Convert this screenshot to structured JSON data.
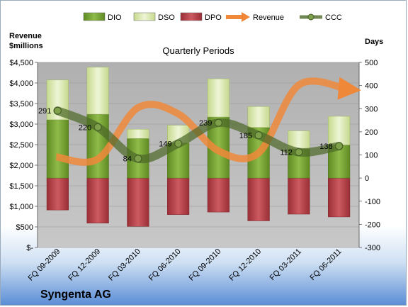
{
  "company": "Syngenta AG",
  "left_axis_header": [
    "Revenue",
    "$millions"
  ],
  "right_axis_header": "Days",
  "colors": {
    "dio": "#7ba33a",
    "dso": "#dbe8b0",
    "dpo": "#b8434a",
    "revenue": "#f0883a",
    "ccc": "#4e6a2a",
    "plot_bg": "#b8b8b8"
  },
  "legend": [
    {
      "key": "dio",
      "label": "DIO",
      "icon": "bar-swatch"
    },
    {
      "key": "dso",
      "label": "DSO",
      "icon": "bar-swatch"
    },
    {
      "key": "dpo",
      "label": "DPO",
      "icon": "bar-swatch"
    },
    {
      "key": "revenue",
      "label": "Revenue",
      "icon": "arrow-line"
    },
    {
      "key": "ccc",
      "label": "CCC",
      "icon": "dot-line"
    }
  ],
  "chart_data": {
    "type": "bar",
    "title": "Quarterly Periods",
    "categories": [
      "FQ 09-2009",
      "FQ 12-2009",
      "FQ 03-2010",
      "FQ 06-2010",
      "FQ 09-2010",
      "FQ 12-2010",
      "FQ 03-2011",
      "FQ 06-2011"
    ],
    "left_axis": {
      "ylim": [
        0,
        4500
      ],
      "ticks": [
        0,
        500,
        1000,
        1500,
        2000,
        2500,
        3000,
        3500,
        4000,
        4500
      ],
      "tick_labels": [
        "$-",
        "$500",
        "$1,000",
        "$1,500",
        "$2,000",
        "$2,500",
        "$3,000",
        "$3,500",
        "$4,000",
        "$4,500"
      ]
    },
    "right_axis": {
      "ylim": [
        -300,
        500
      ],
      "ticks": [
        -300,
        -200,
        -100,
        0,
        100,
        200,
        300,
        400,
        500
      ],
      "tick_labels": [
        "-300",
        "-200",
        "-100",
        "0",
        "100",
        "200",
        "300",
        "400",
        "500"
      ]
    },
    "series": [
      {
        "name": "DIO",
        "axis": "right",
        "values": [
          252,
          276,
          171,
          152,
          264,
          219,
          126,
          143
        ]
      },
      {
        "name": "DSO",
        "axis": "right",
        "values": [
          172,
          203,
          40,
          76,
          165,
          90,
          78,
          124
        ]
      },
      {
        "name": "DPO",
        "axis": "right",
        "values": [
          -138,
          -195,
          -209,
          -158,
          -147,
          -185,
          -156,
          -168
        ]
      },
      {
        "name": "Revenue",
        "axis": "left",
        "values": [
          2200,
          2150,
          3400,
          3250,
          2350,
          2300,
          3950,
          3850
        ]
      },
      {
        "name": "CCC",
        "axis": "right",
        "values": [
          291,
          220,
          84,
          149,
          239,
          185,
          112,
          138
        ]
      }
    ],
    "ccc_labels": [
      "291",
      "220",
      "84",
      "149",
      "239",
      "185",
      "112",
      "138"
    ],
    "grid": true,
    "legend_position": "top"
  }
}
